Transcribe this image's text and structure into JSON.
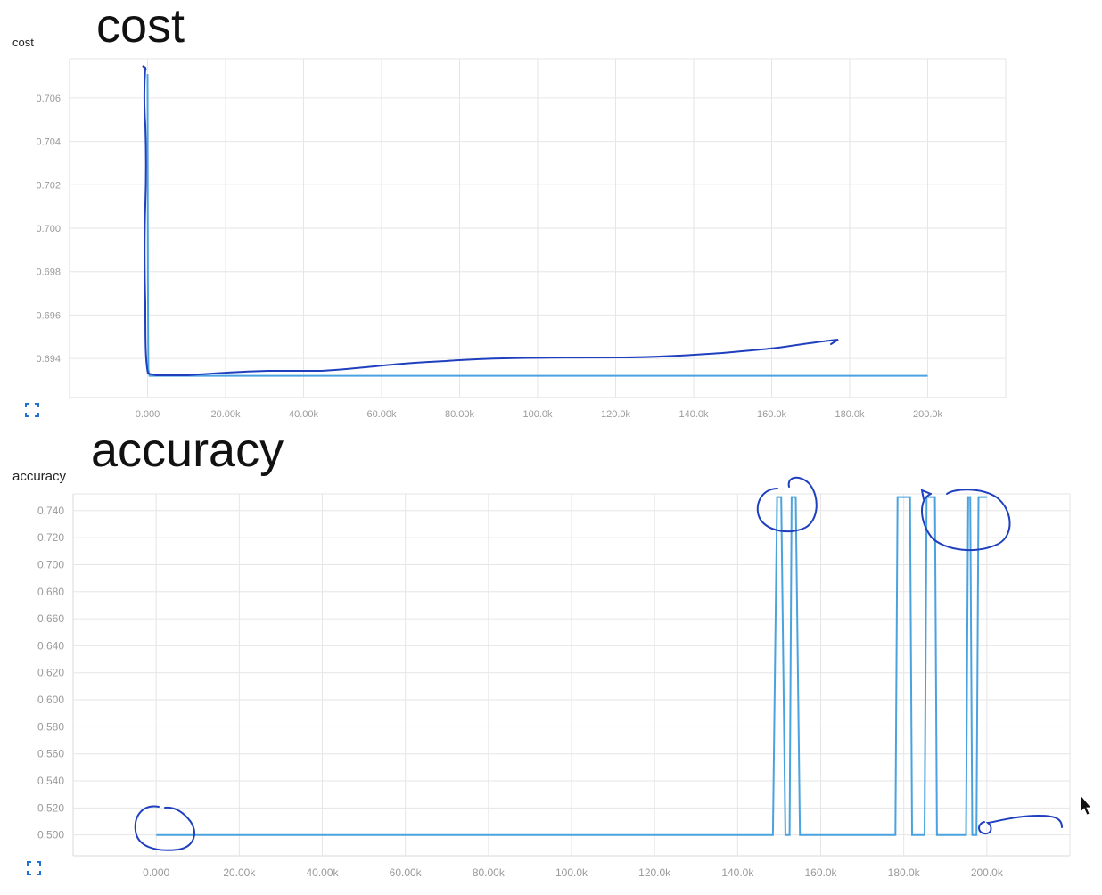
{
  "annotations": {
    "cost_heading": "cost",
    "accuracy_heading": "accuracy"
  },
  "icons": [
    "expand-icon",
    "cursor-arrow-icon"
  ],
  "colors": {
    "series": "#4aa3df",
    "grid": "#e6e6e6",
    "tick_text": "#9a9a9a",
    "ink": "#1f3fbf"
  },
  "chart_data": [
    {
      "type": "line",
      "title": "cost",
      "xlabel": "",
      "ylabel": "",
      "xlim": [
        -20000,
        220000
      ],
      "ylim": [
        0.6922,
        0.7078
      ],
      "x_ticks": [
        0,
        20000,
        40000,
        60000,
        80000,
        100000,
        120000,
        140000,
        160000,
        180000,
        200000
      ],
      "x_tick_labels": [
        "0.000",
        "20.00k",
        "40.00k",
        "60.00k",
        "80.00k",
        "100.0k",
        "120.0k",
        "140.0k",
        "160.0k",
        "180.0k",
        "200.0k"
      ],
      "y_ticks": [
        0.694,
        0.696,
        0.698,
        0.7,
        0.702,
        0.704,
        0.706
      ],
      "y_tick_labels": [
        "0.694",
        "0.696",
        "0.698",
        "0.700",
        "0.702",
        "0.704",
        "0.706"
      ],
      "grid": true,
      "series": [
        {
          "x": [
            0,
            100,
            200,
            500,
            1000,
            200000
          ],
          "y": [
            0.7071,
            0.6975,
            0.6935,
            0.6932,
            0.6932,
            0.6932
          ]
        }
      ]
    },
    {
      "type": "line",
      "title": "accuracy",
      "xlabel": "",
      "ylabel": "",
      "xlim": [
        -20000,
        220000
      ],
      "ylim": [
        0.4846,
        0.7524
      ],
      "x_ticks": [
        0,
        20000,
        40000,
        60000,
        80000,
        100000,
        120000,
        140000,
        160000,
        180000,
        200000
      ],
      "x_tick_labels": [
        "0.000",
        "20.00k",
        "40.00k",
        "60.00k",
        "80.00k",
        "100.0k",
        "120.0k",
        "140.0k",
        "160.0k",
        "180.0k",
        "200.0k"
      ],
      "y_ticks": [
        0.5,
        0.52,
        0.54,
        0.56,
        0.58,
        0.6,
        0.62,
        0.64,
        0.66,
        0.68,
        0.7,
        0.72,
        0.74
      ],
      "y_tick_labels": [
        "0.500",
        "0.520",
        "0.540",
        "0.560",
        "0.580",
        "0.600",
        "0.620",
        "0.640",
        "0.660",
        "0.680",
        "0.700",
        "0.720",
        "0.740"
      ],
      "grid": true,
      "series": [
        {
          "x": [
            0,
            148500,
            149500,
            150500,
            151500,
            152500,
            153000,
            154000,
            155000,
            178000,
            178500,
            181500,
            182000,
            185000,
            185500,
            187500,
            188000,
            195000,
            195500,
            196000,
            196500,
            197500,
            198000,
            200000
          ],
          "y": [
            0.5,
            0.5,
            0.75,
            0.75,
            0.5,
            0.5,
            0.75,
            0.75,
            0.5,
            0.5,
            0.75,
            0.75,
            0.5,
            0.5,
            0.75,
            0.75,
            0.5,
            0.5,
            0.75,
            0.75,
            0.5,
            0.5,
            0.75,
            0.75
          ]
        }
      ]
    }
  ]
}
